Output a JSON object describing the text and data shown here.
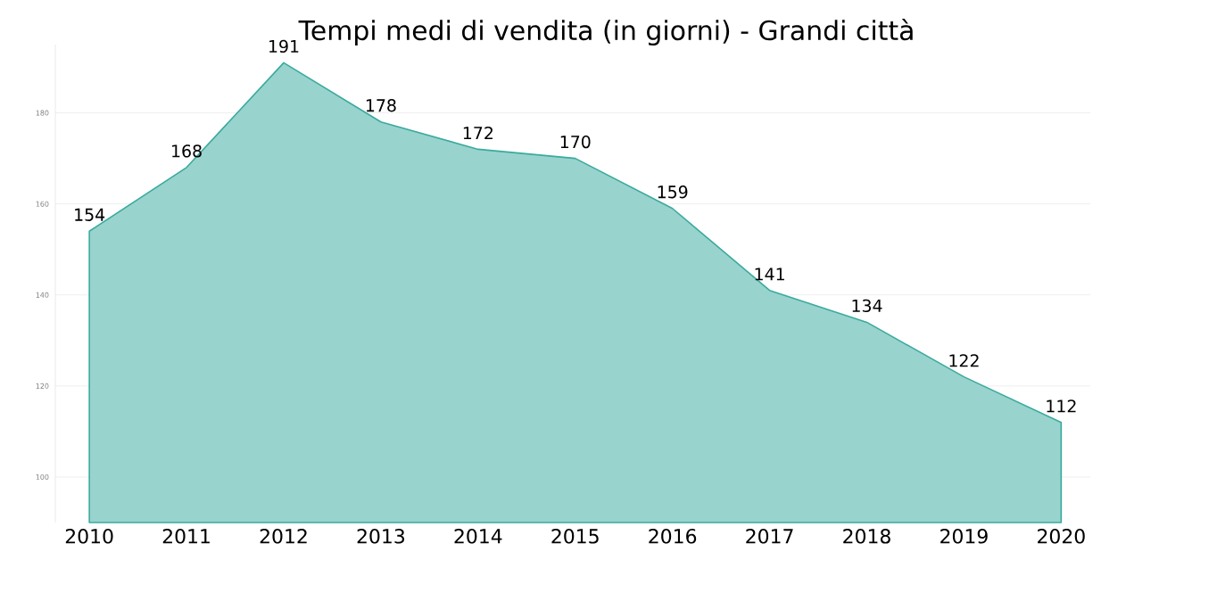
{
  "chart_data": {
    "type": "area",
    "title": "Tempi medi di vendita (in giorni) - Grandi città",
    "categories": [
      "2010",
      "2011",
      "2012",
      "2013",
      "2014",
      "2015",
      "2016",
      "2017",
      "2018",
      "2019",
      "2020"
    ],
    "values": [
      154,
      168,
      191,
      178,
      172,
      170,
      159,
      141,
      134,
      122,
      112
    ],
    "color": "#3aaa9e",
    "ylim": [
      90,
      195
    ],
    "yticks": [
      100,
      120,
      140,
      160,
      180
    ],
    "grid": "y",
    "data_labels": true
  }
}
